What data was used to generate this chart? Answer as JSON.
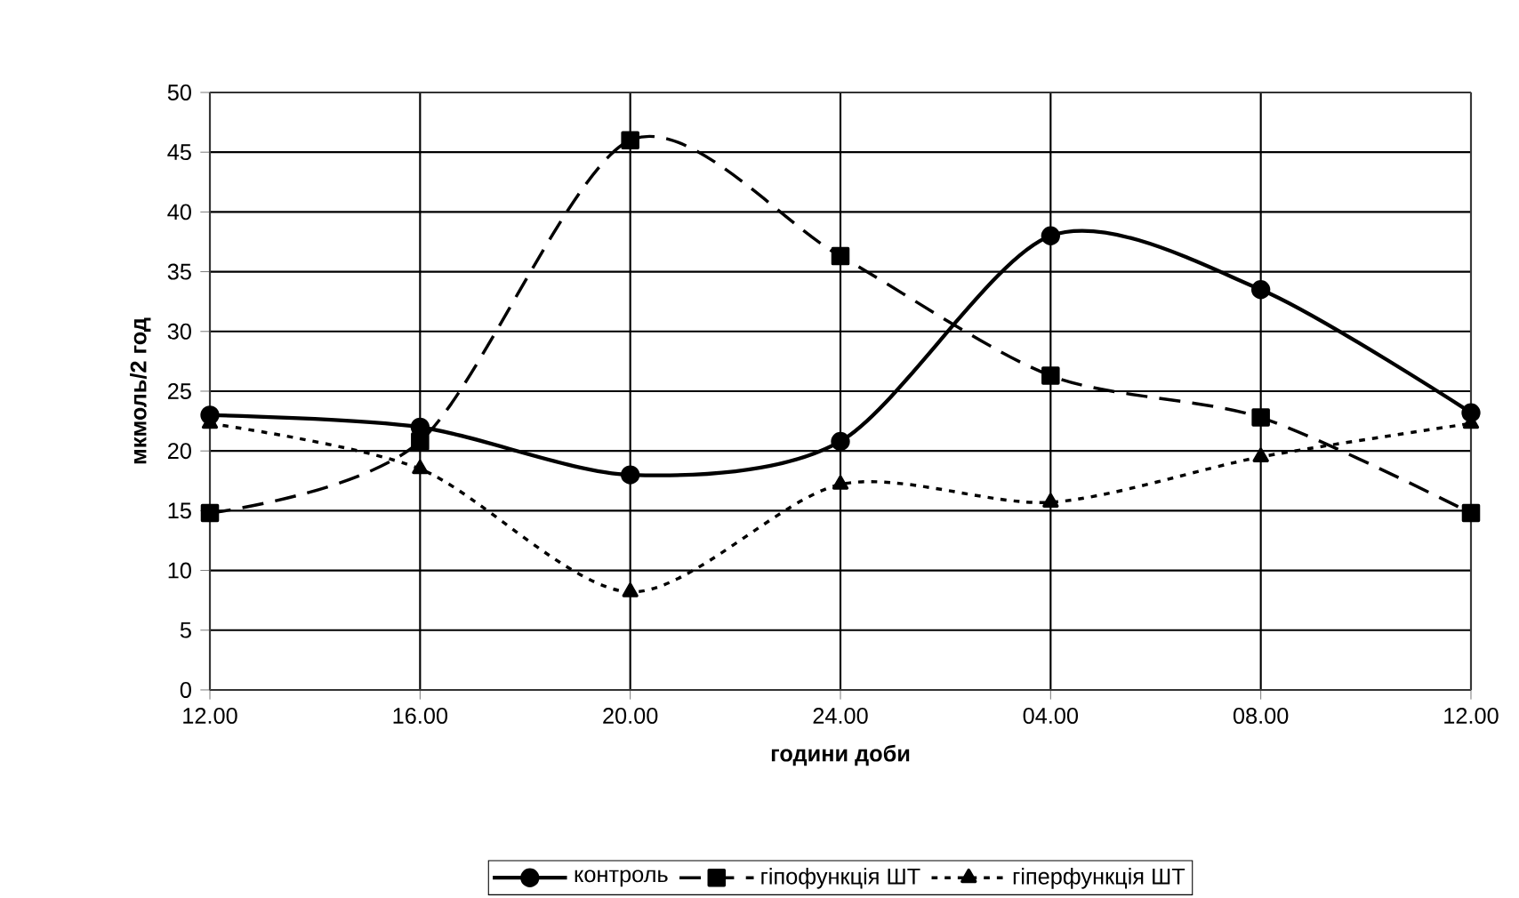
{
  "chart_data": {
    "type": "line",
    "xlabel": "години доби",
    "ylabel": "мкмоль/2 год",
    "categories": [
      "12.00",
      "16.00",
      "20.00",
      "24.00",
      "04.00",
      "08.00",
      "12.00"
    ],
    "ylim": [
      0,
      50
    ],
    "yticks": [
      0,
      5,
      10,
      15,
      20,
      25,
      30,
      35,
      40,
      45,
      50
    ],
    "grid": true,
    "legend": "bottom",
    "series": [
      {
        "name": "контроль",
        "color": "#000000",
        "marker": "circle",
        "line_style": "solid",
        "values": [
          23.0,
          22.0,
          18.0,
          20.8,
          38.0,
          33.5,
          23.2
        ]
      },
      {
        "name": "гіпофункція ШТ",
        "color": "#000000",
        "marker": "square",
        "line_style": "dashed",
        "values": [
          14.8,
          20.8,
          46.0,
          36.3,
          26.3,
          22.8,
          14.8
        ]
      },
      {
        "name": "гіперфункція ШТ",
        "color": "#000000",
        "marker": "triangle",
        "line_style": "dotted",
        "values": [
          22.3,
          18.5,
          8.2,
          17.2,
          15.7,
          19.5,
          22.3
        ]
      }
    ]
  }
}
